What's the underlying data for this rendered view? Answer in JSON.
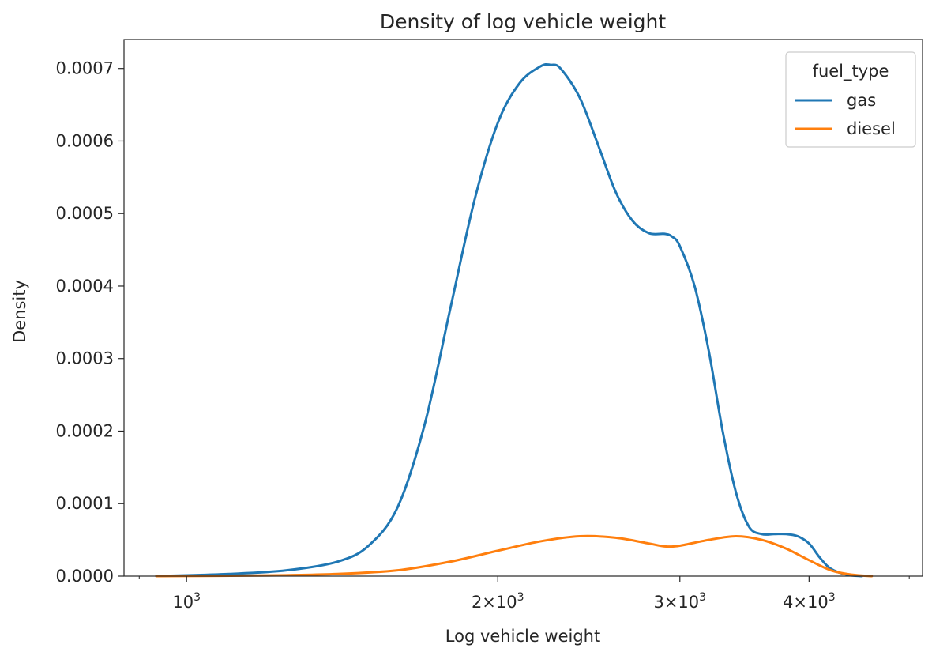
{
  "chart_data": {
    "type": "line",
    "title": "Density of log vehicle weight",
    "xlabel": "Log vehicle weight",
    "ylabel": "Density",
    "xscale": "log",
    "xlim": [
      870,
      5150
    ],
    "ylim": [
      0,
      0.00074
    ],
    "grid": false,
    "x_major_ticks": [
      {
        "value": 1000,
        "base": "10",
        "exp": "3",
        "mantissa": ""
      },
      {
        "value": 2000,
        "base": "10",
        "exp": "3",
        "mantissa": "2"
      },
      {
        "value": 3000,
        "base": "10",
        "exp": "3",
        "mantissa": "3"
      },
      {
        "value": 4000,
        "base": "10",
        "exp": "3",
        "mantissa": "4"
      }
    ],
    "x_minor_ticks": [
      900,
      5000
    ],
    "y_ticks": [
      "0.0000",
      "0.0001",
      "0.0002",
      "0.0003",
      "0.0004",
      "0.0005",
      "0.0006",
      "0.0007"
    ],
    "legend": {
      "title": "fuel_type",
      "placement": "top-right"
    },
    "series": [
      {
        "name": "gas",
        "color": "#1f77b4",
        "x": [
          935,
          1100,
          1250,
          1400,
          1500,
          1600,
          1700,
          1800,
          1900,
          2000,
          2100,
          2200,
          2250,
          2300,
          2400,
          2500,
          2600,
          2700,
          2800,
          2900,
          2950,
          3000,
          3100,
          3200,
          3300,
          3400,
          3500,
          3600,
          3700,
          3800,
          3900,
          4000,
          4100,
          4200,
          4350,
          4500
        ],
        "y": [
          0,
          3e-06,
          8e-06,
          2e-05,
          4.2e-05,
          9.5e-05,
          0.00021,
          0.00037,
          0.00052,
          0.000625,
          0.00068,
          0.000703,
          0.000705,
          0.0007,
          0.00066,
          0.000595,
          0.00053,
          0.00049,
          0.000473,
          0.000472,
          0.000468,
          0.000455,
          0.0004,
          0.00031,
          0.0002,
          0.000115,
          6.8e-05,
          5.8e-05,
          5.8e-05,
          5.8e-05,
          5.5e-05,
          4.5e-05,
          2.5e-05,
          1e-05,
          2e-06,
          0
        ]
      },
      {
        "name": "diesel",
        "color": "#ff7f0e",
        "x": [
          935,
          1200,
          1400,
          1600,
          1800,
          2000,
          2200,
          2400,
          2600,
          2800,
          2900,
          3000,
          3200,
          3400,
          3600,
          3800,
          4000,
          4200,
          4400,
          4600
        ],
        "y": [
          0,
          1e-06,
          3e-06,
          8e-06,
          2e-05,
          3.5e-05,
          4.8e-05,
          5.5e-05,
          5.3e-05,
          4.5e-05,
          4.1e-05,
          4.2e-05,
          5e-05,
          5.5e-05,
          5e-05,
          3.8e-05,
          2.2e-05,
          8e-06,
          2e-06,
          0
        ]
      }
    ]
  }
}
